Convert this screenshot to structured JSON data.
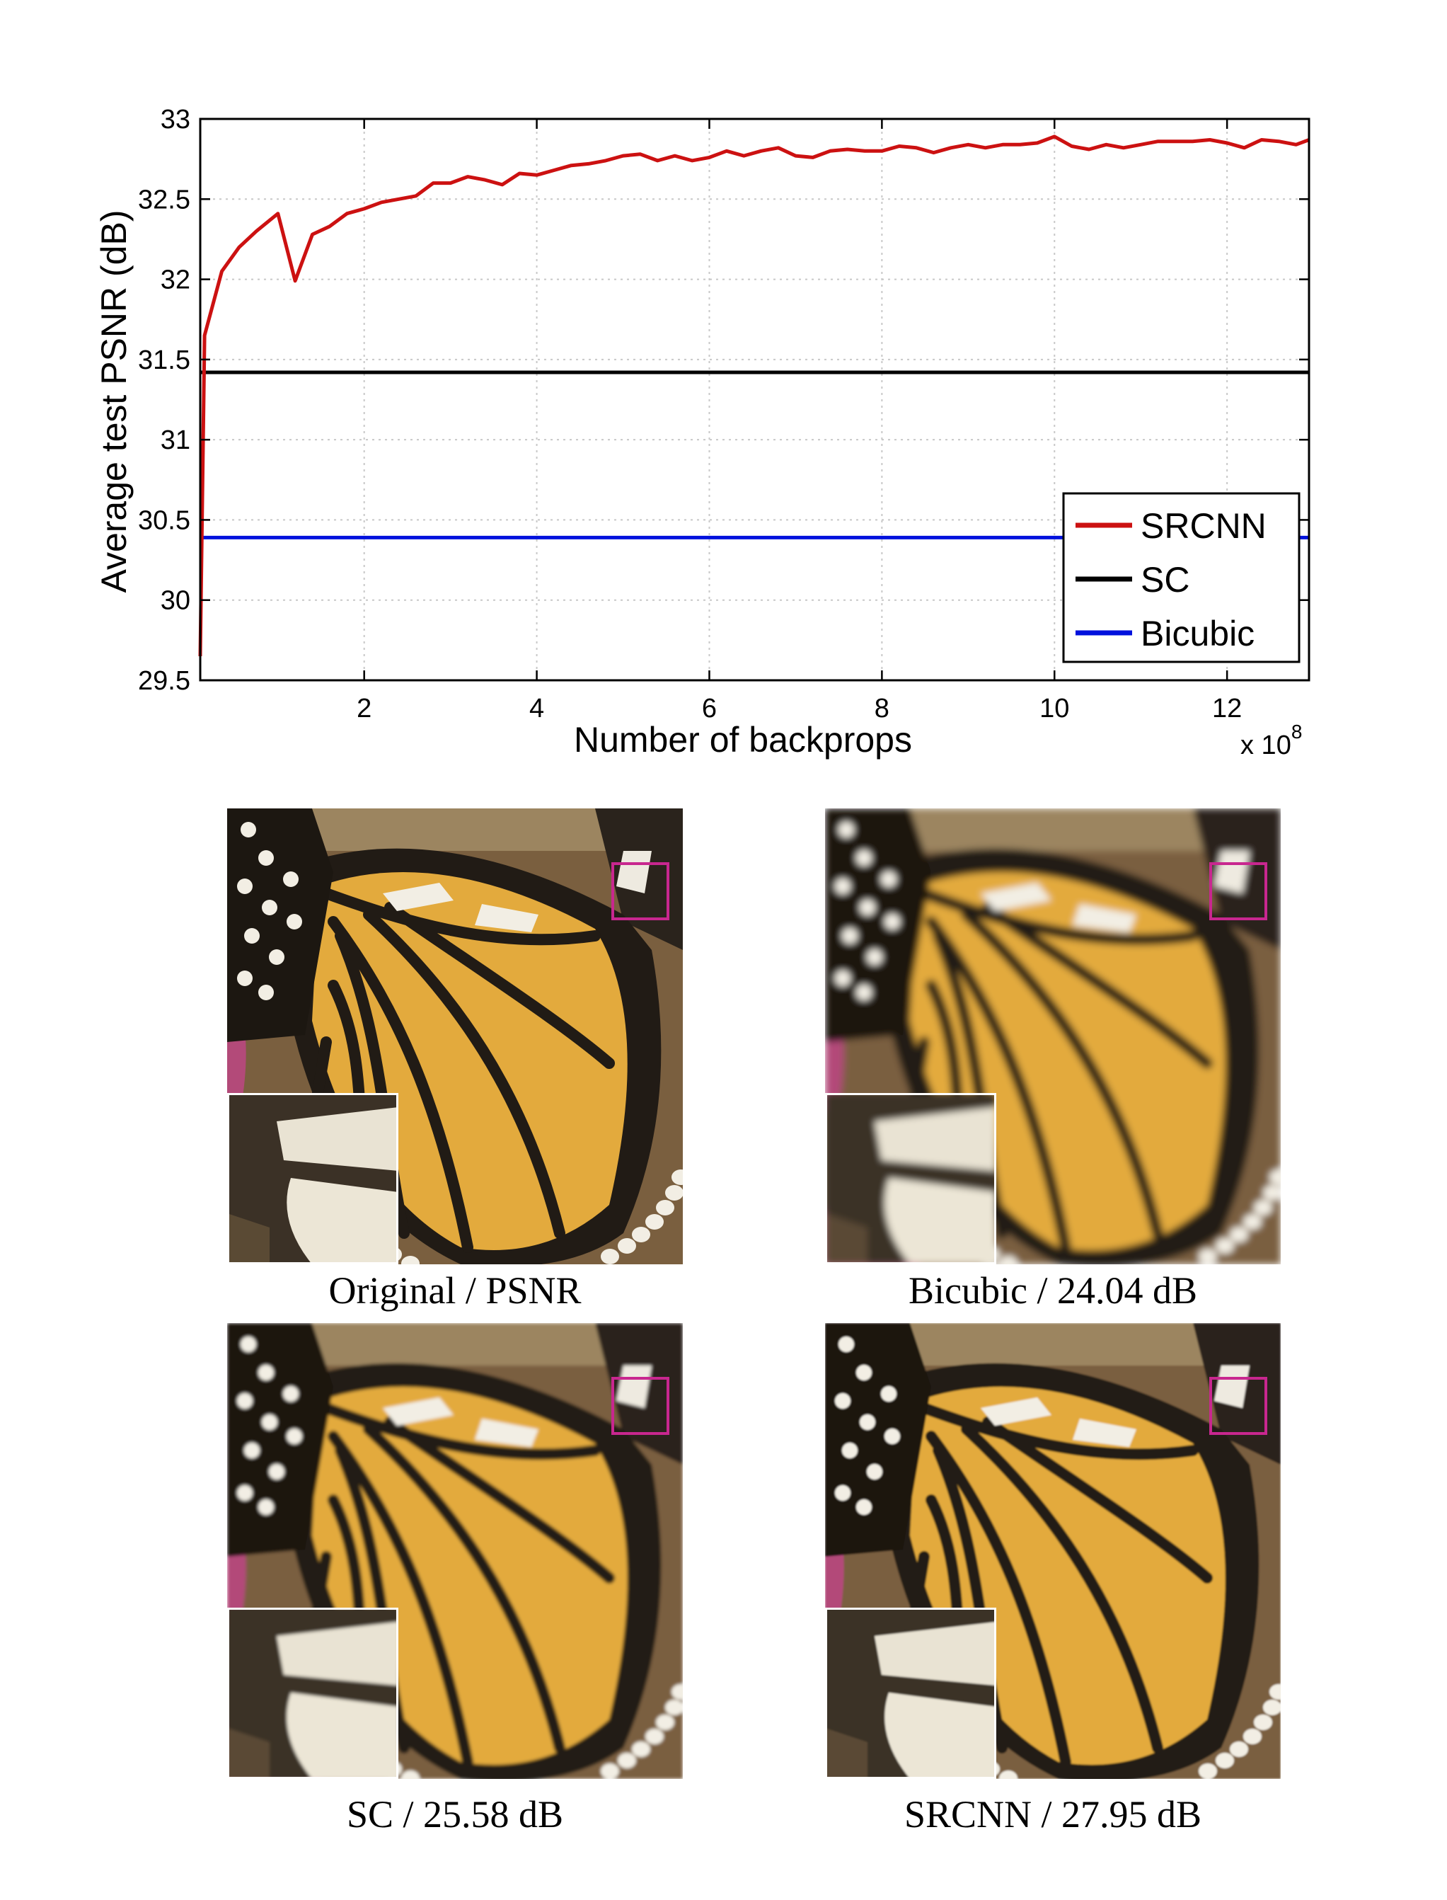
{
  "chart_data": {
    "type": "line",
    "title": "",
    "xlabel": "Number of backprops",
    "ylabel": "Average test PSNR (dB)",
    "x_multiplier_label": "x 10",
    "x_multiplier_exponent": "8",
    "xlim": [
      0.1,
      12.95
    ],
    "ylim": [
      29.5,
      33.0
    ],
    "xticks": [
      2,
      4,
      6,
      8,
      10,
      12
    ],
    "xtick_labels": [
      "2",
      "4",
      "6",
      "8",
      "10",
      "12"
    ],
    "yticks": [
      29.5,
      30,
      30.5,
      31,
      31.5,
      32,
      32.5,
      33
    ],
    "ytick_labels": [
      "29.5",
      "30",
      "30.5",
      "31",
      "31.5",
      "32",
      "32.5",
      "33"
    ],
    "grid": true,
    "legend_position": "bottom-right",
    "series": [
      {
        "name": "SRCNN",
        "color": "#cc1111",
        "x": [
          0.1,
          0.15,
          0.35,
          0.55,
          0.75,
          1.0,
          1.2,
          1.4,
          1.6,
          1.8,
          2.0,
          2.2,
          2.4,
          2.6,
          2.8,
          3.0,
          3.2,
          3.4,
          3.6,
          3.8,
          4.0,
          4.2,
          4.4,
          4.6,
          4.8,
          5.0,
          5.2,
          5.4,
          5.6,
          5.8,
          6.0,
          6.2,
          6.4,
          6.6,
          6.8,
          7.0,
          7.2,
          7.4,
          7.6,
          7.8,
          8.0,
          8.2,
          8.4,
          8.6,
          8.8,
          9.0,
          9.2,
          9.4,
          9.6,
          9.8,
          10.0,
          10.2,
          10.4,
          10.6,
          10.8,
          11.0,
          11.2,
          11.4,
          11.6,
          11.8,
          12.0,
          12.2,
          12.4,
          12.6,
          12.8,
          12.95
        ],
        "values": [
          29.65,
          31.65,
          32.05,
          32.2,
          32.3,
          32.41,
          31.99,
          32.28,
          32.33,
          32.41,
          32.44,
          32.48,
          32.5,
          32.52,
          32.6,
          32.6,
          32.64,
          32.62,
          32.59,
          32.66,
          32.65,
          32.68,
          32.71,
          32.72,
          32.74,
          32.77,
          32.78,
          32.74,
          32.77,
          32.74,
          32.76,
          32.8,
          32.77,
          32.8,
          32.82,
          32.77,
          32.76,
          32.8,
          32.81,
          32.8,
          32.8,
          32.83,
          32.82,
          32.79,
          32.82,
          32.84,
          32.82,
          32.84,
          32.84,
          32.85,
          32.89,
          32.83,
          32.81,
          32.84,
          32.82,
          32.84,
          32.86,
          32.86,
          32.86,
          32.87,
          32.85,
          32.82,
          32.87,
          32.86,
          32.84,
          32.87
        ]
      },
      {
        "name": "SC",
        "color": "#000000",
        "x": [
          0.1,
          12.95
        ],
        "values": [
          31.42,
          31.42
        ]
      },
      {
        "name": "Bicubic",
        "color": "#0011dd",
        "x": [
          0.1,
          12.95
        ],
        "values": [
          30.39,
          30.39
        ]
      }
    ]
  },
  "figure_panels": [
    {
      "caption": "Original / PSNR",
      "variant": "original"
    },
    {
      "caption": "Bicubic / 24.04 dB",
      "variant": "bicubic"
    },
    {
      "caption": "SC / 25.58 dB",
      "variant": "sc"
    },
    {
      "caption": "SRCNN / 27.95 dB",
      "variant": "srcnn"
    }
  ]
}
